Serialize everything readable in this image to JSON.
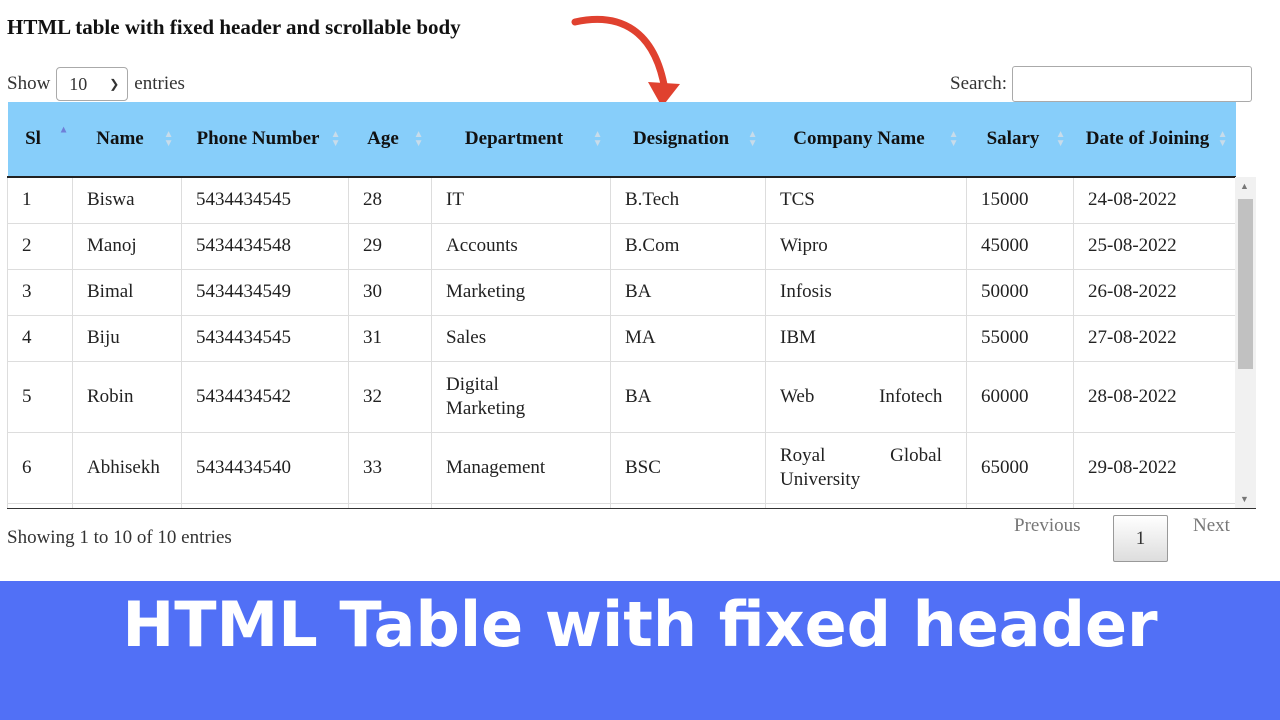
{
  "page_title": "HTML table with fixed header and scrollable body",
  "length": {
    "show": "Show",
    "value": "10",
    "entries": "entries"
  },
  "search": {
    "label": "Search:",
    "value": ""
  },
  "columns": [
    "Sl",
    "Name",
    "Phone Number",
    "Age",
    "Department",
    "Designation",
    "Company Name",
    "Salary",
    "Date of Joining"
  ],
  "sorted_column": "Sl",
  "sort_direction": "ascending",
  "rows": [
    [
      "1",
      "Biswa",
      "5434434545",
      "28",
      "IT",
      "B.Tech",
      "TCS",
      "15000",
      "24-08-2022"
    ],
    [
      "2",
      "Manoj",
      "5434434548",
      "29",
      "Accounts",
      "B.Com",
      "Wipro",
      "45000",
      "25-08-2022"
    ],
    [
      "3",
      "Bimal",
      "5434434549",
      "30",
      "Marketing",
      "BA",
      "Infosis",
      "50000",
      "26-08-2022"
    ],
    [
      "4",
      "Biju",
      "5434434545",
      "31",
      "Sales",
      "MA",
      "IBM",
      "55000",
      "27-08-2022"
    ],
    [
      "5",
      "Robin",
      "5434434542",
      "32",
      "Digital Marketing",
      "BA",
      "Web Infotech",
      "60000",
      "28-08-2022"
    ],
    [
      "6",
      "Abhisekh",
      "5434434540",
      "33",
      "Management",
      "BSC",
      "Royal Global University",
      "65000",
      "29-08-2022"
    ]
  ],
  "footer": {
    "info": "Showing 1 to 10 of 10 entries",
    "previous": "Previous",
    "page": "1",
    "next": "Next"
  },
  "banner": "HTML Table with fixed header",
  "colors": {
    "header_bg": "#87cefa",
    "banner_bg": "#5170f6",
    "arrow": "#e0412f"
  }
}
